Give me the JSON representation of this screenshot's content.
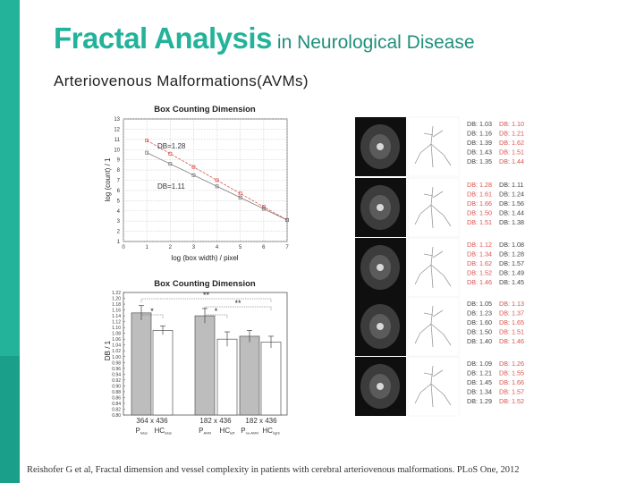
{
  "slide": {
    "title_main": "Fractal Analysis",
    "title_sub": "in Neurological Disease",
    "subtitle": "Arteriovenous Malformations(AVMs)",
    "citation": "Reishofer G et al, Fractal dimension and vessel complexity in patients with cerebral arteriovenous malformations. PLoS One, 2012",
    "colors": {
      "accent": "#23b29a",
      "accent_dark": "#1a9f8a"
    }
  },
  "chart_data": [
    {
      "type": "scatter",
      "title": "Box Counting Dimension",
      "xlabel": "log (box width) / pixel",
      "ylabel": "log (count) / 1",
      "xlim": [
        0,
        7
      ],
      "ylim": [
        1,
        13
      ],
      "x_ticks": [
        "0",
        "1",
        "2",
        "3",
        "4",
        "5",
        "6",
        "7"
      ],
      "y_ticks": [
        "1",
        "2",
        "3",
        "4",
        "5",
        "6",
        "7",
        "8",
        "9",
        "10",
        "11",
        "12",
        "13"
      ],
      "grid": true,
      "annotations": [
        "DB=1.28",
        "DB=1.11"
      ],
      "series": [
        {
          "name": "",
          "color": "#d9534f",
          "x": [
            1.0,
            2.0,
            3.0,
            4.0,
            5.0,
            6.0,
            7.0
          ],
          "y": [
            10.9,
            9.6,
            8.3,
            7.0,
            5.7,
            4.4,
            3.1
          ]
        },
        {
          "name": "",
          "color": "#777777",
          "x": [
            1.0,
            2.0,
            3.0,
            4.0,
            5.0,
            6.0,
            7.0
          ],
          "y": [
            9.7,
            8.6,
            7.5,
            6.4,
            5.3,
            4.2,
            3.1
          ]
        }
      ]
    },
    {
      "type": "bar",
      "title": "Box Counting Dimension",
      "ylabel": "DB / 1",
      "ylim": [
        0.8,
        1.22
      ],
      "y_ticks": [
        "0.80",
        "0.82",
        "0.84",
        "0.86",
        "0.88",
        "0.90",
        "0.92",
        "0.94",
        "0.96",
        "0.98",
        "1.00",
        "1.02",
        "1.04",
        "1.06",
        "1.08",
        "1.10",
        "1.12",
        "1.14",
        "1.16",
        "1.18",
        "1.20",
        "1.22"
      ],
      "group_labels": [
        "364 x 436",
        "182 x 436",
        "182 x 436"
      ],
      "categories": [
        "P",
        "HC",
        "P",
        "HC",
        "P",
        "HC"
      ],
      "category_subscripts": [
        "total",
        "total",
        "AVM",
        "left",
        "no-AVM",
        "right"
      ],
      "values": [
        1.15,
        1.09,
        1.14,
        1.06,
        1.07,
        1.05
      ],
      "errors": [
        0.025,
        0.015,
        0.025,
        0.025,
        0.02,
        0.02
      ],
      "bar_colors": [
        "#bdbdbd",
        "#ffffff",
        "#bdbdbd",
        "#ffffff",
        "#bdbdbd",
        "#ffffff"
      ],
      "significance": [
        "*",
        "*",
        "**",
        "**"
      ]
    }
  ],
  "scan_panel": {
    "rows": [
      {
        "left": [
          "DB: 1.03",
          "DB: 1.16",
          "DB: 1.39",
          "DB: 1.43",
          "DB: 1.35"
        ],
        "right": [
          "DB: 1.10",
          "DB: 1.21",
          "DB: 1.62",
          "DB: 1.51",
          "DB: 1.44"
        ],
        "left_color": "#444444",
        "right_color": "#d9534f"
      },
      {
        "left": [
          "DB: 1.28",
          "DB: 1.61",
          "DB: 1.66",
          "DB: 1.50",
          "DB: 1.51"
        ],
        "right": [
          "DB: 1.11",
          "DB: 1.24",
          "DB: 1.56",
          "DB: 1.44",
          "DB: 1.38"
        ],
        "left_color": "#d9534f",
        "right_color": "#444444"
      },
      {
        "left": [
          "DB: 1.12",
          "DB: 1.34",
          "DB: 1.62",
          "DB: 1.52",
          "DB: 1.46"
        ],
        "right": [
          "DB: 1.08",
          "DB: 1.28",
          "DB: 1.57",
          "DB: 1.49",
          "DB: 1.45"
        ],
        "left_color": "#d9534f",
        "right_color": "#444444"
      },
      {
        "left": [
          "DB: 1.05",
          "DB: 1.23",
          "DB: 1.60",
          "DB: 1.50",
          "DB: 1.40"
        ],
        "right": [
          "DB: 1.13",
          "DB: 1.37",
          "DB: 1.65",
          "DB: 1.51",
          "DB: 1.46"
        ],
        "left_color": "#444444",
        "right_color": "#d9534f"
      },
      {
        "left": [
          "DB: 1.09",
          "DB: 1.21",
          "DB: 1.45",
          "DB: 1.34",
          "DB: 1.29"
        ],
        "right": [
          "DB: 1.26",
          "DB: 1.55",
          "DB: 1.66",
          "DB: 1.57",
          "DB: 1.52"
        ],
        "left_color": "#444444",
        "right_color": "#d9534f"
      }
    ]
  }
}
